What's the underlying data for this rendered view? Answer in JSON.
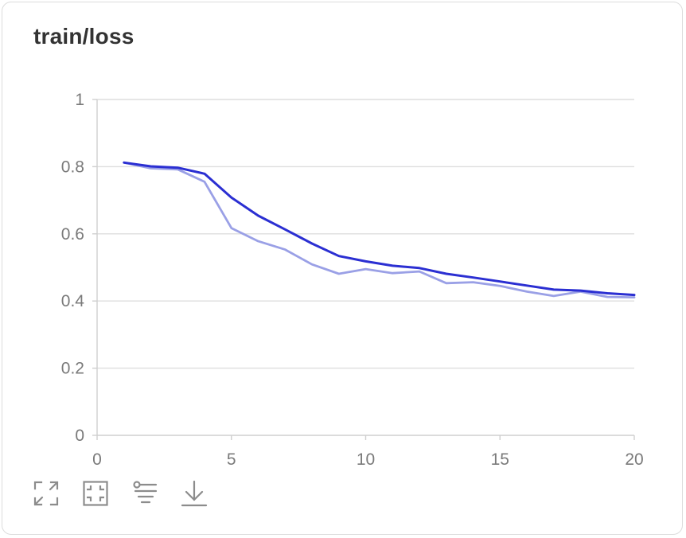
{
  "card": {
    "title": "train/loss"
  },
  "chart_data": {
    "type": "line",
    "title": "train/loss",
    "xlim": [
      0,
      20
    ],
    "ylim": [
      0,
      1
    ],
    "xticks": [
      0,
      5,
      10,
      15,
      20
    ],
    "yticks": [
      0,
      0.2,
      0.4,
      0.6,
      0.8,
      1
    ],
    "xtick_labels": [
      "0",
      "5",
      "10",
      "15",
      "20"
    ],
    "ytick_labels": [
      "0",
      "0.2",
      "0.4",
      "0.6",
      "0.8",
      "1"
    ],
    "grid": true,
    "x": [
      1,
      2,
      3,
      4,
      5,
      6,
      7,
      8,
      9,
      10,
      11,
      12,
      13,
      14,
      15,
      16,
      17,
      18,
      19,
      20
    ],
    "series": [
      {
        "color": "#9aa0e6",
        "values": [
          0.812,
          0.795,
          0.792,
          0.755,
          0.617,
          0.578,
          0.553,
          0.509,
          0.481,
          0.495,
          0.483,
          0.488,
          0.453,
          0.456,
          0.445,
          0.428,
          0.415,
          0.428,
          0.412,
          0.411
        ]
      },
      {
        "color": "#2b2fd2",
        "values": [
          0.812,
          0.801,
          0.797,
          0.779,
          0.708,
          0.654,
          0.613,
          0.571,
          0.534,
          0.518,
          0.505,
          0.498,
          0.481,
          0.47,
          0.458,
          0.446,
          0.434,
          0.431,
          0.423,
          0.418
        ]
      }
    ]
  },
  "toolbar": {
    "icons": [
      "expand-icon",
      "fit-icon",
      "filter-icon",
      "download-icon"
    ],
    "icon_color": "#8c8c8c"
  }
}
